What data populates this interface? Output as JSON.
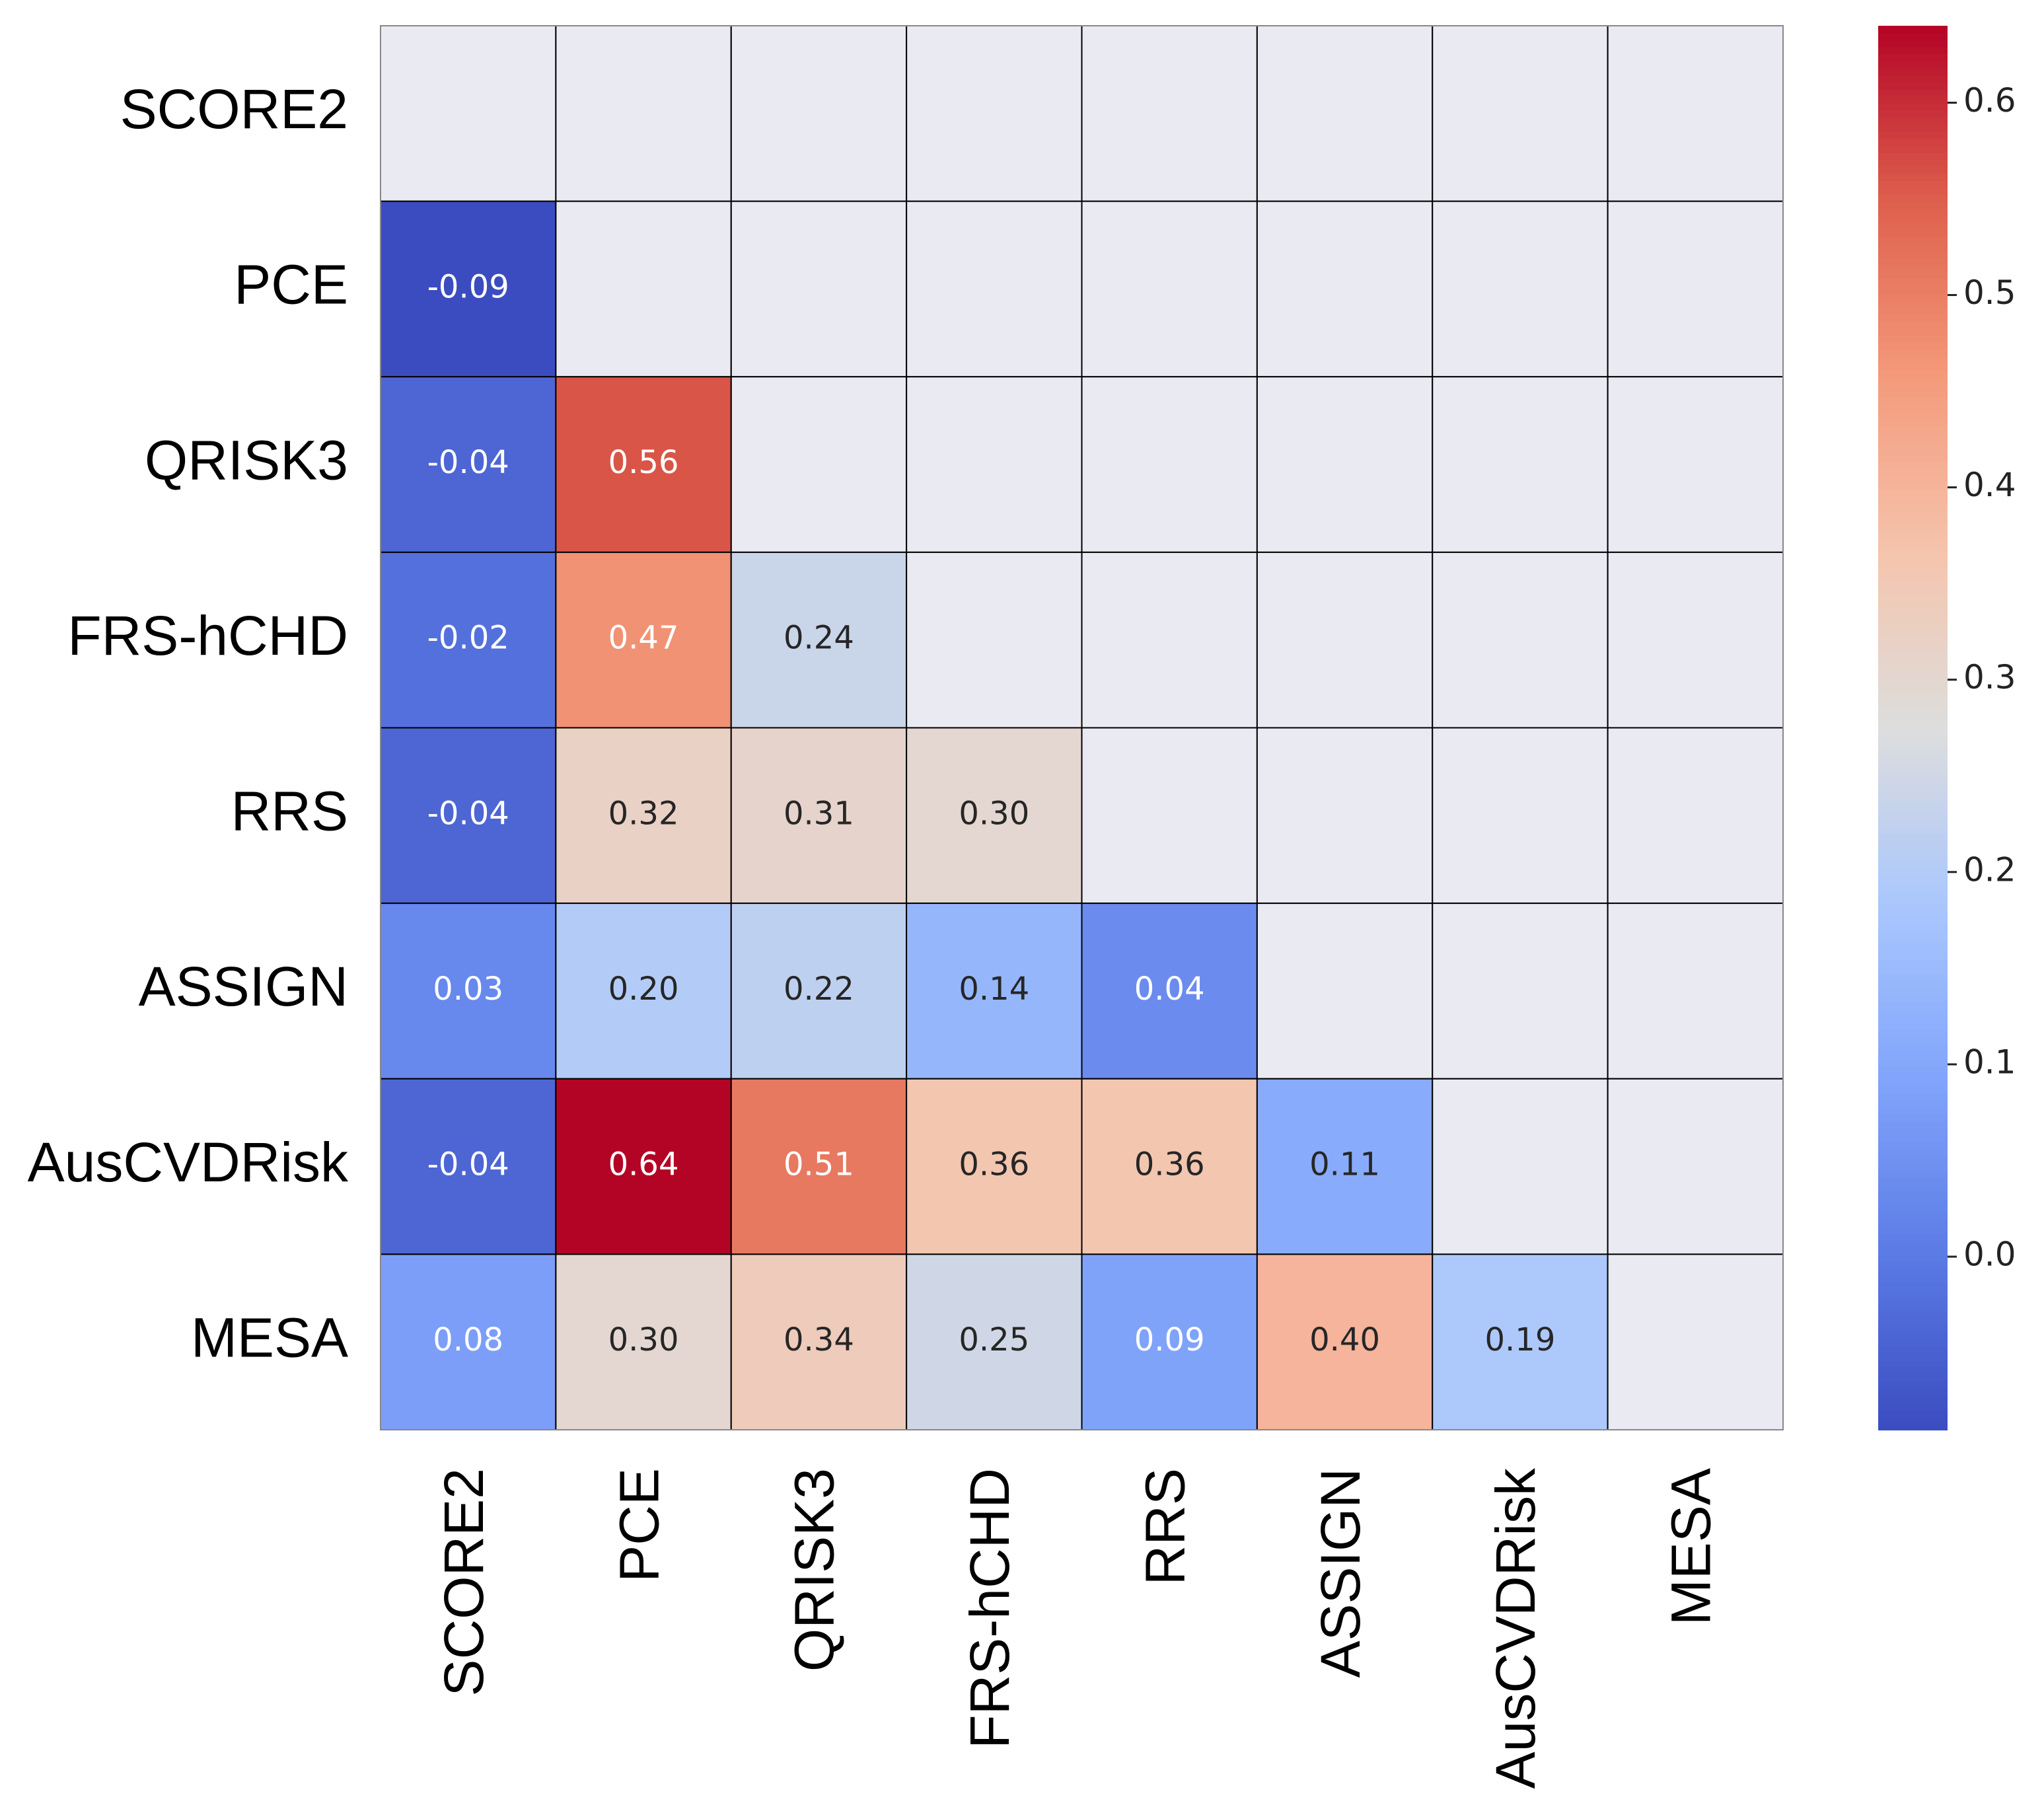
{
  "chart_data": {
    "type": "heatmap",
    "rows": [
      "SCORE2",
      "PCE",
      "QRISK3",
      "FRS-hCHD",
      "RRS",
      "ASSIGN",
      "AusCVDRisk",
      "MESA"
    ],
    "columns": [
      "SCORE2",
      "PCE",
      "QRISK3",
      "FRS-hCHD",
      "RRS",
      "ASSIGN",
      "AusCVDRisk",
      "MESA"
    ],
    "values": [
      [
        null,
        null,
        null,
        null,
        null,
        null,
        null,
        null
      ],
      [
        -0.09,
        null,
        null,
        null,
        null,
        null,
        null,
        null
      ],
      [
        -0.04,
        0.56,
        null,
        null,
        null,
        null,
        null,
        null
      ],
      [
        -0.02,
        0.47,
        0.24,
        null,
        null,
        null,
        null,
        null
      ],
      [
        -0.04,
        0.32,
        0.31,
        0.3,
        null,
        null,
        null,
        null
      ],
      [
        0.03,
        0.2,
        0.22,
        0.14,
        0.04,
        null,
        null,
        null
      ],
      [
        -0.04,
        0.64,
        0.51,
        0.36,
        0.36,
        0.11,
        null,
        null
      ],
      [
        0.08,
        0.3,
        0.34,
        0.25,
        0.09,
        0.4,
        0.19,
        null
      ]
    ],
    "value_labels": [
      [
        null,
        null,
        null,
        null,
        null,
        null,
        null,
        null
      ],
      [
        "-0.09",
        null,
        null,
        null,
        null,
        null,
        null,
        null
      ],
      [
        "-0.04",
        "0.56",
        null,
        null,
        null,
        null,
        null,
        null
      ],
      [
        "-0.02",
        "0.47",
        "0.24",
        null,
        null,
        null,
        null,
        null
      ],
      [
        "-0.04",
        "0.32",
        "0.31",
        "0.30",
        null,
        null,
        null,
        null
      ],
      [
        "0.03",
        "0.20",
        "0.22",
        "0.14",
        "0.04",
        null,
        null,
        null
      ],
      [
        "-0.04",
        "0.64",
        "0.51",
        "0.36",
        "0.36",
        "0.11",
        null,
        null
      ],
      [
        "0.08",
        "0.30",
        "0.34",
        "0.25",
        "0.09",
        "0.40",
        "0.19",
        null
      ]
    ],
    "colormap": "coolwarm",
    "clim": [
      -0.09,
      0.64
    ],
    "cticks": [
      {
        "value": 0,
        "label": "0.0"
      },
      0.1,
      0.2,
      0.3,
      0.4,
      0.5,
      0.6
    ]
  }
}
